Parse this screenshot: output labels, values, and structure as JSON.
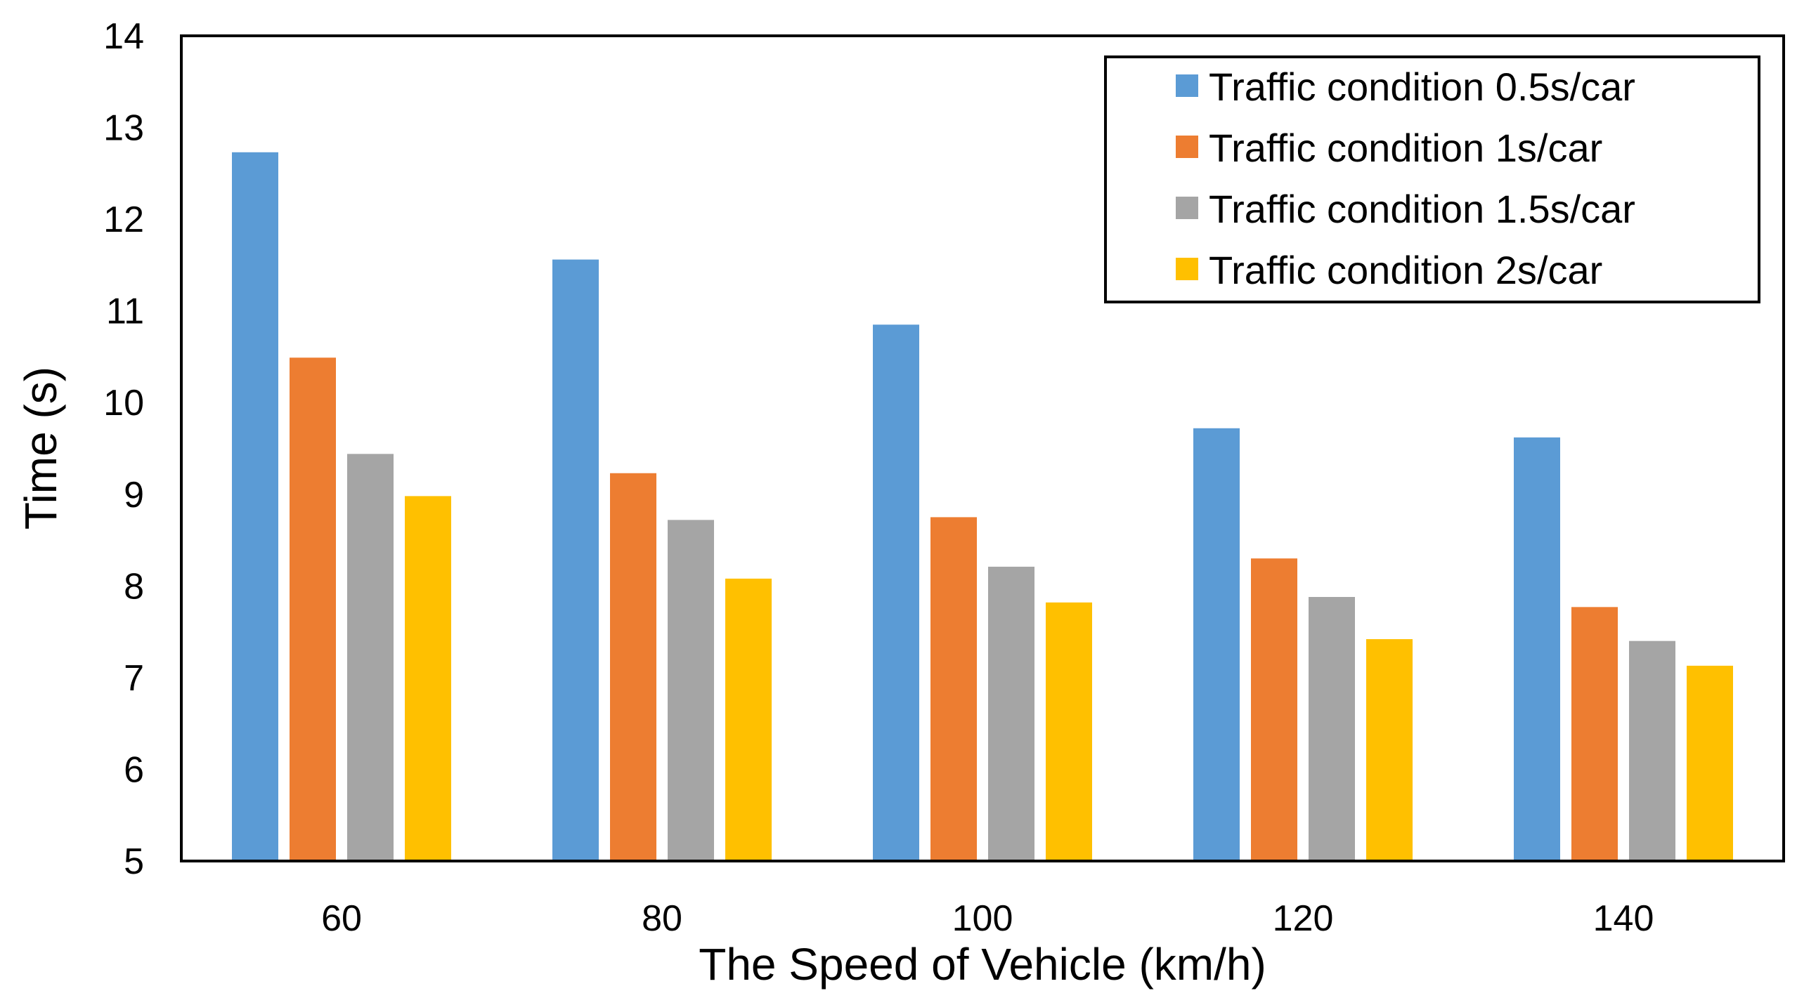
{
  "chart_data": {
    "type": "bar",
    "title": "",
    "xlabel": "The Speed of Vehicle (km/h)",
    "ylabel": "Time (s)",
    "ylim": [
      5,
      14
    ],
    "yticks": [
      "5",
      "6",
      "7",
      "8",
      "9",
      "10",
      "11",
      "12",
      "13",
      "14"
    ],
    "categories": [
      "60",
      "80",
      "100",
      "120",
      "140"
    ],
    "series": [
      {
        "name": "Traffic condition 0.5s/car",
        "color": "#5B9BD5",
        "values": [
          12.73,
          11.56,
          10.85,
          9.72,
          9.62
        ]
      },
      {
        "name": "Traffic condition 1s/car",
        "color": "#ED7D31",
        "values": [
          10.49,
          9.23,
          8.75,
          8.3,
          7.77
        ]
      },
      {
        "name": "Traffic condition 1.5s/car",
        "color": "#A5A5A5",
        "values": [
          9.44,
          8.72,
          8.21,
          7.88,
          7.4
        ]
      },
      {
        "name": "Traffic condition 2s/car",
        "color": "#FFC000",
        "values": [
          8.98,
          8.08,
          7.82,
          7.42,
          7.13
        ]
      }
    ],
    "legend_position": "top-right",
    "grid": false
  }
}
